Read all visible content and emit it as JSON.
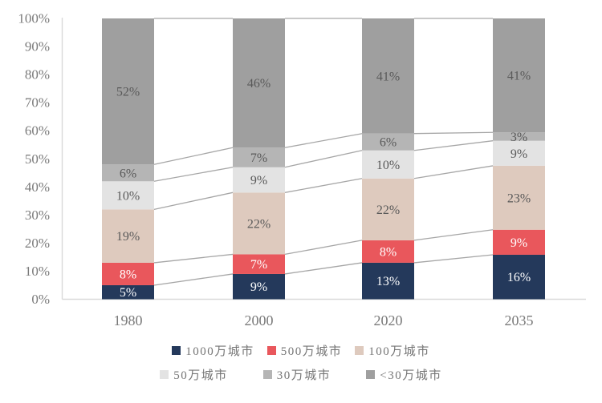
{
  "chart_data": {
    "type": "bar",
    "subtype": "stacked-100-percent",
    "title": "",
    "categories": [
      "1980",
      "2000",
      "2020",
      "2035"
    ],
    "series": [
      {
        "name": "1000万城市",
        "color": "#24395B",
        "label_color": "#FFFFFF",
        "values": [
          5,
          9,
          13,
          16
        ],
        "labels": [
          "5%",
          "9%",
          "13%",
          "16%"
        ]
      },
      {
        "name": "500万城市",
        "color": "#E9575C",
        "label_color": "#FFFFFF",
        "values": [
          8,
          7,
          8,
          9
        ],
        "labels": [
          "8%",
          "7%",
          "8%",
          "9%"
        ]
      },
      {
        "name": "100万城市",
        "color": "#DECABE",
        "label_color": "#595959",
        "values": [
          19,
          22,
          22,
          23
        ],
        "labels": [
          "19%",
          "22%",
          "22%",
          "23%"
        ]
      },
      {
        "name": "50万城市",
        "color": "#E3E3E3",
        "label_color": "#595959",
        "values": [
          10,
          9,
          10,
          9
        ],
        "labels": [
          "10%",
          "9%",
          "10%",
          "9%"
        ]
      },
      {
        "name": "30万城市",
        "color": "#B5B5B5",
        "label_color": "#595959",
        "values": [
          6,
          7,
          6,
          3
        ],
        "labels": [
          "6%",
          "7%",
          "6%",
          "3%"
        ]
      },
      {
        "name": "<30万城市",
        "color": "#9F9F9F",
        "label_color": "#595959",
        "values": [
          52,
          46,
          41,
          41
        ],
        "labels": [
          "52%",
          "46%",
          "41%",
          "41%"
        ]
      }
    ],
    "y_axis": {
      "min": 0,
      "max": 100,
      "ticks": [
        "0%",
        "10%",
        "20%",
        "30%",
        "40%",
        "50%",
        "60%",
        "70%",
        "80%",
        "90%",
        "100%"
      ]
    },
    "x_axis": {
      "label": ""
    },
    "legend_position": "bottom",
    "legend_rows": 2,
    "grid": false,
    "connector_lines": true,
    "colors": {
      "background": "#FFFFFF",
      "axis_line": "#D9D9D9",
      "connector_line": "#A6A6A6",
      "tick_text": "#7A7A7A",
      "category_text": "#7A7A7A",
      "legend_text": "#757575"
    }
  }
}
